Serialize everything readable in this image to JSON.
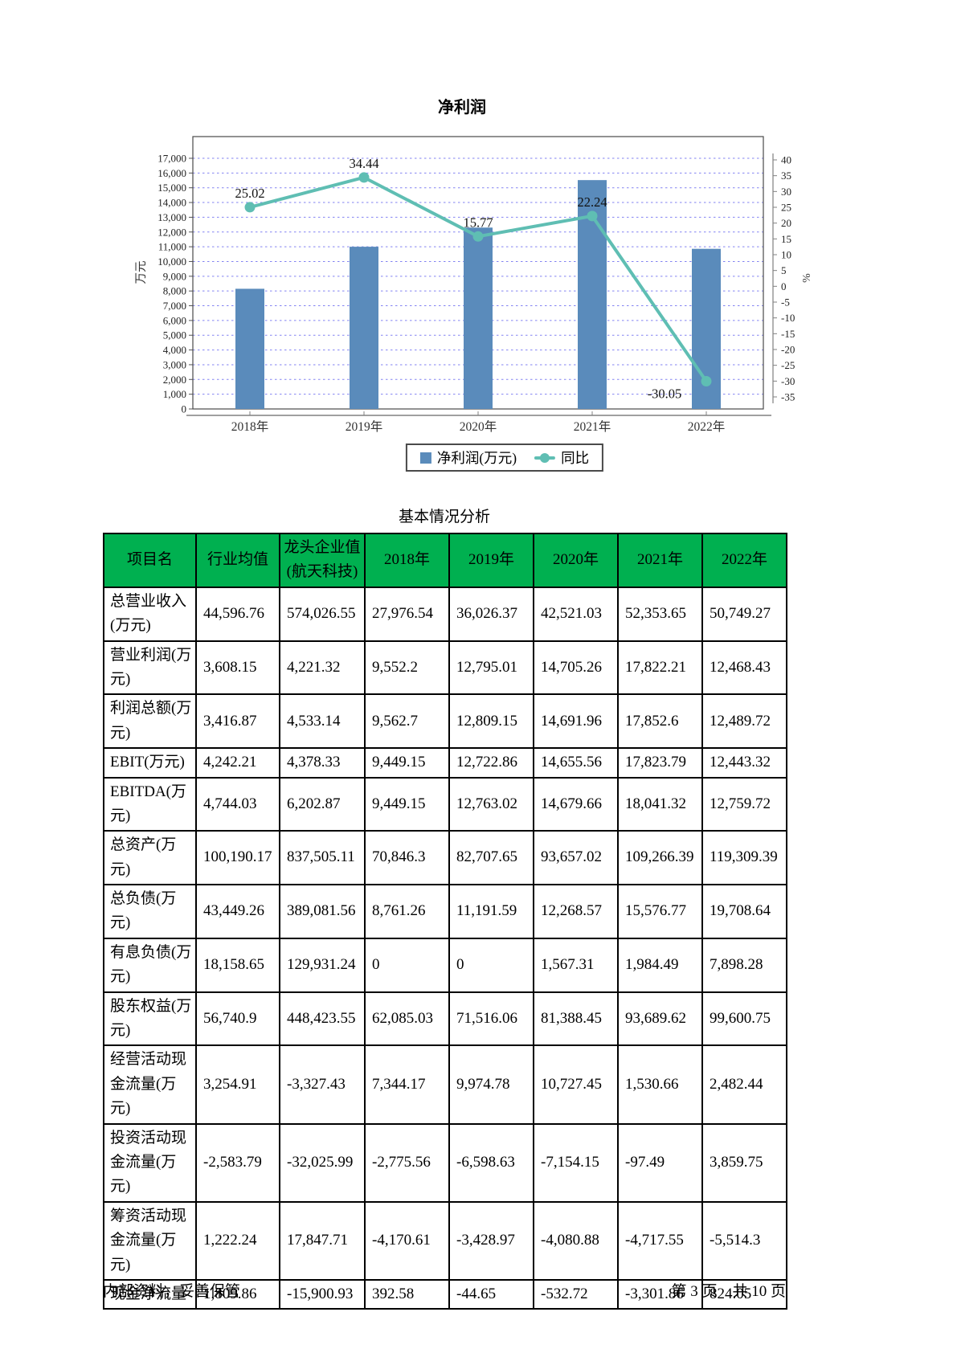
{
  "page": {
    "footer_left": "内部资料，妥善保管",
    "footer_right": "第 3 页　共 10 页"
  },
  "chart_data": {
    "type": "bar+line",
    "title": "净利润",
    "categories": [
      "2018年",
      "2019年",
      "2020年",
      "2021年",
      "2022年"
    ],
    "series": [
      {
        "name": "净利润(万元)",
        "type": "bar",
        "axis": "left",
        "color": "#5a8bbb",
        "values": [
          8150,
          11000,
          12300,
          15520,
          10860
        ]
      },
      {
        "name": "同比",
        "type": "line",
        "axis": "right",
        "color": "#5fbeb3",
        "values": [
          25.02,
          34.44,
          15.77,
          22.24,
          -30.05
        ]
      }
    ],
    "left_axis": {
      "label": "万元",
      "min": 0,
      "max": 17000,
      "step": 1000
    },
    "right_axis": {
      "label": "%",
      "min": -35,
      "max": 40,
      "step": 5
    },
    "grid": "horizontal-dashed",
    "legend_position": "bottom"
  },
  "table": {
    "title": "基本情况分析",
    "columns": [
      "项目名",
      "行业均值",
      "龙头企业值(航天科技)",
      "2018年",
      "2019年",
      "2020年",
      "2021年",
      "2022年"
    ],
    "rows": [
      {
        "label": "总营业收入(万元)",
        "values": [
          "44,596.76",
          "574,026.55",
          "27,976.54",
          "36,026.37",
          "42,521.03",
          "52,353.65",
          "50,749.27"
        ]
      },
      {
        "label": "营业利润(万元)",
        "values": [
          "3,608.15",
          "4,221.32",
          "9,552.2",
          "12,795.01",
          "14,705.26",
          "17,822.21",
          "12,468.43"
        ]
      },
      {
        "label": "利润总额(万元)",
        "values": [
          "3,416.87",
          "4,533.14",
          "9,562.7",
          "12,809.15",
          "14,691.96",
          "17,852.6",
          "12,489.72"
        ]
      },
      {
        "label": "EBIT(万元)",
        "values": [
          "4,242.21",
          "4,378.33",
          "9,449.15",
          "12,722.86",
          "14,655.56",
          "17,823.79",
          "12,443.32"
        ]
      },
      {
        "label": "EBITDA(万元)",
        "values": [
          "4,744.03",
          "6,202.87",
          "9,449.15",
          "12,763.02",
          "14,679.66",
          "18,041.32",
          "12,759.72"
        ]
      },
      {
        "label": "总资产(万元)",
        "values": [
          "100,190.17",
          "837,505.11",
          "70,846.3",
          "82,707.65",
          "93,657.02",
          "109,266.39",
          "119,309.39"
        ]
      },
      {
        "label": "总负债(万元)",
        "values": [
          "43,449.26",
          "389,081.56",
          "8,761.26",
          "11,191.59",
          "12,268.57",
          "15,576.77",
          "19,708.64"
        ]
      },
      {
        "label": "有息负债(万元)",
        "values": [
          "18,158.65",
          "129,931.24",
          "0",
          "0",
          "1,567.31",
          "1,984.49",
          "7,898.28"
        ]
      },
      {
        "label": "股东权益(万元)",
        "values": [
          "56,740.9",
          "448,423.55",
          "62,085.03",
          "71,516.06",
          "81,388.45",
          "93,689.62",
          "99,600.75"
        ]
      },
      {
        "label": "经营活动现金流量(万元)",
        "values": [
          "3,254.91",
          "-3,327.43",
          "7,344.17",
          "9,974.78",
          "10,727.45",
          "1,530.66",
          "2,482.44"
        ]
      },
      {
        "label": "投资活动现金流量(万元)",
        "values": [
          "-2,583.79",
          "-32,025.99",
          "-2,775.56",
          "-6,598.63",
          "-7,154.15",
          "-97.49",
          "3,859.75"
        ]
      },
      {
        "label": "筹资活动现金流量(万元)",
        "values": [
          "1,222.24",
          "17,847.71",
          "-4,170.61",
          "-3,428.97",
          "-4,080.88",
          "-4,717.55",
          "-5,514.3"
        ]
      },
      {
        "label": "现金净流量",
        "values": [
          "1,809.86",
          "-15,900.93",
          "392.58",
          "-44.65",
          "-532.72",
          "-3,301.86",
          "824.05"
        ]
      }
    ]
  }
}
